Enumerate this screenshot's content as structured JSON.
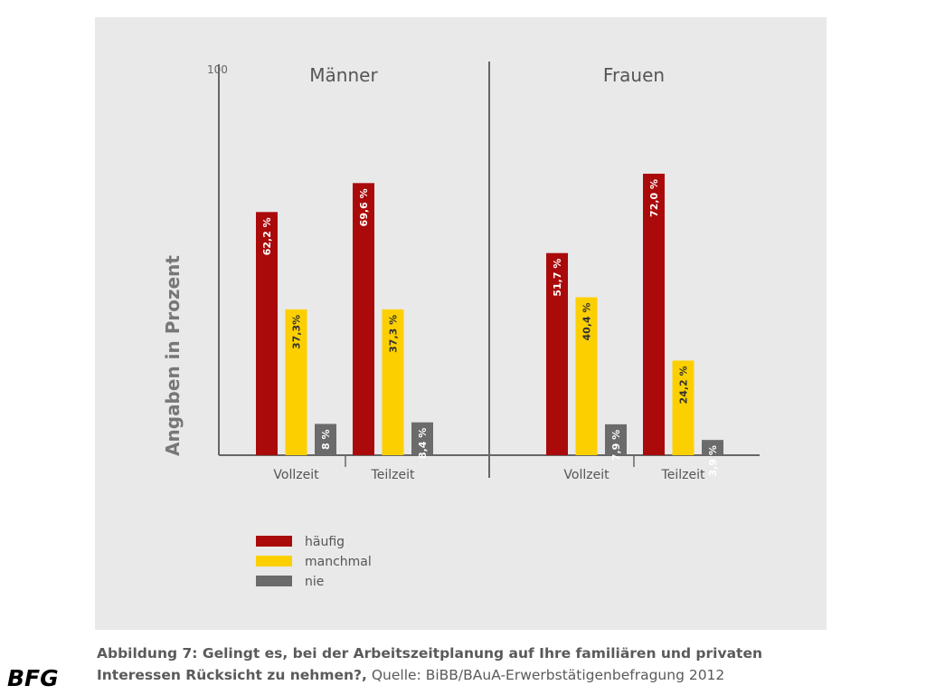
{
  "chart_data": {
    "type": "bar",
    "ylabel": "Angaben in Prozent",
    "ylim": [
      0,
      100
    ],
    "y_top_tick": "100",
    "panels": [
      {
        "title": "Männer",
        "categories": [
          "Vollzeit",
          "Teilzeit"
        ],
        "series": [
          {
            "name": "häufig",
            "values": [
              62.2,
              69.6
            ],
            "labels": [
              "62,2 %",
              "69,6 %"
            ]
          },
          {
            "name": "manchmal",
            "values": [
              37.3,
              37.3
            ],
            "labels": [
              "37,3%",
              "37,3 %"
            ]
          },
          {
            "name": "nie",
            "values": [
              8,
              8.4
            ],
            "labels": [
              "8 %",
              "8,4 %"
            ]
          }
        ]
      },
      {
        "title": "Frauen",
        "categories": [
          "Vollzeit",
          "Teilzeit"
        ],
        "series": [
          {
            "name": "häufig",
            "values": [
              51.7,
              72.0
            ],
            "labels": [
              "51,7 %",
              "72,0 %"
            ]
          },
          {
            "name": "manchmal",
            "values": [
              40.4,
              24.2
            ],
            "labels": [
              "40,4 %",
              "24,2 %"
            ]
          },
          {
            "name": "nie",
            "values": [
              7.9,
              3.9
            ],
            "labels": [
              "7,9 %",
              "3,9 %"
            ]
          }
        ]
      }
    ],
    "legend": {
      "placement": "bottom-left",
      "items": [
        {
          "label": "häufig",
          "color": "#aa0a0a"
        },
        {
          "label": "manchmal",
          "color": "#fcd000"
        },
        {
          "label": "nie",
          "color": "#6b6b6b"
        }
      ]
    },
    "grid": false
  },
  "caption": {
    "bold_text": "Abbildung 7: Gelingt es, bei der Arbeitszeitplanung auf Ihre familiären und privaten",
    "bold_text_2": "Interessen Rücksicht zu nehmen?,",
    "source": " Quelle: BiBB/BAuA-Erwerbstätigenbefragung 2012"
  },
  "logo": {
    "text": "BFG"
  }
}
